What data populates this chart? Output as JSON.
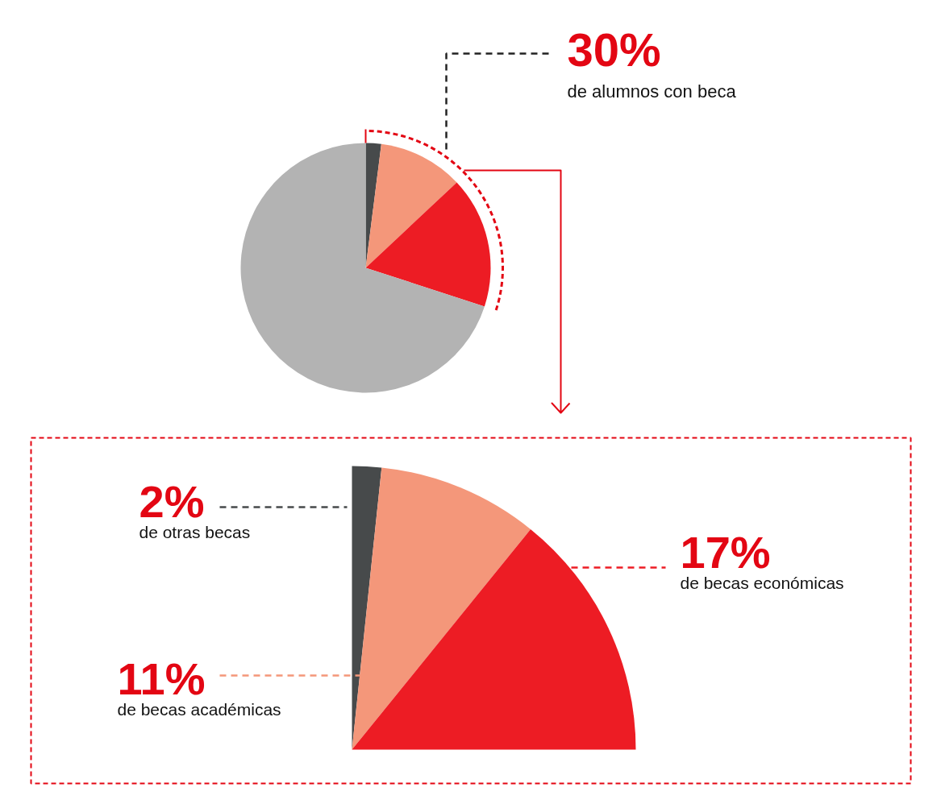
{
  "chart_data": [
    {
      "type": "pie",
      "categories": [
        null,
        null,
        null,
        null
      ],
      "values": [
        2,
        11,
        17,
        70
      ],
      "colors": [
        "#474a4b",
        "#f4977a",
        "#ed1c24",
        "#b3b3b3"
      ],
      "annotations": [
        "30%",
        "de alumnos con beca"
      ]
    },
    {
      "type": "other",
      "categories": [
        "de otras becas",
        "de becas académicas",
        "de becas económicas"
      ],
      "values": [
        2,
        11,
        17
      ],
      "colors": [
        "#474a4b",
        "#f4977a",
        "#ed1c24"
      ],
      "value_labels": [
        "2%",
        "11%",
        "17%"
      ]
    }
  ]
}
